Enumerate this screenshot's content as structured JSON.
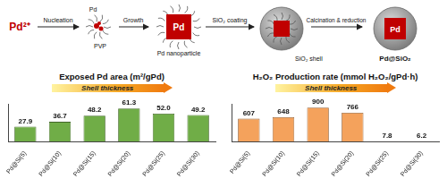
{
  "diagram": {
    "precursor": "Pd²⁺",
    "nucleation": "Nucleation",
    "cluster_label": "Pd",
    "ligand_label": "PVP",
    "growth": "Growth",
    "nanoparticle_core": "Pd",
    "nanoparticle": "Pd nanoparticle",
    "coating": "SiO₂ coating",
    "shell": "SiO₂ shell",
    "calcination": "Calcination & reduction",
    "product_core": "Pd",
    "product": "Pd@SiO₂"
  },
  "chart_data": [
    {
      "type": "bar",
      "title": "Exposed Pd area (m²/gPd)",
      "annotation": "Shell thickness",
      "categories": [
        "Pd@Si(5)",
        "Pd@Si(10)",
        "Pd@Si(15)",
        "Pd@Si(20)",
        "Pd@Si(25)",
        "Pd@Si(30)"
      ],
      "values": [
        27.9,
        36.7,
        48.2,
        61.3,
        52.0,
        49.2
      ],
      "value_labels": [
        "27.9",
        "36.7",
        "48.2",
        "61.3",
        "52.0",
        "49.2"
      ],
      "color": "#70ad47",
      "ylim": [
        0,
        70
      ],
      "grid": false,
      "data_labels": true,
      "tick_labels": "x"
    },
    {
      "type": "bar",
      "title": "H₂O₂ Production rate (mmol H₂O₂/gPd·h)",
      "annotation": "Shell thickness",
      "categories": [
        "Pd@Si(5)",
        "Pd@Si(10)",
        "Pd@Si(15)",
        "Pd@Si(20)",
        "Pd@Si(25)",
        "Pd@Si(30)"
      ],
      "values": [
        607,
        648,
        900,
        766,
        7.8,
        6.2
      ],
      "color": "#f4a25c",
      "ylim": [
        0,
        1000
      ],
      "grid": false,
      "data_labels": true,
      "tick_labels": "x"
    }
  ]
}
